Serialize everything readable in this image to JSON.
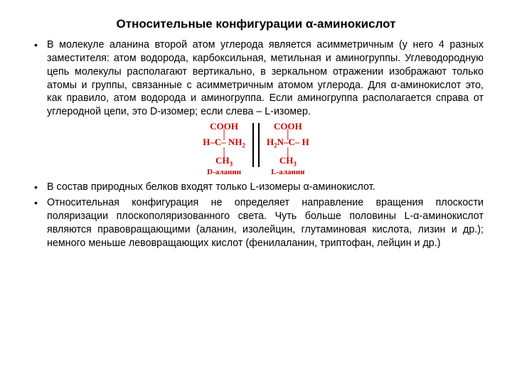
{
  "title": "Относительные конфигурации α-аминокислот",
  "bullets": {
    "b1": "В молекуле аланина второй атом углерода является асимметричным (у него 4 разных заместителя: атом водорода, карбоксильная, метильная и аминогруппы. Углеводородную цепь молекулы располагают вертикально, в зеркальном отражении изображают только атомы и группы, связанные с асимметричным атомом углерода. Для α-аминокислот это, как правило, атом водорода и аминогруппа. Если аминогруппа располагается справа от углеродной цепи, это D-изомер; если слева – L-изомер.",
    "b2": "В состав природных белков входят только L-изомеры α-аминокислот.",
    "b3": "Относительная конфигурация не определяет направление вращения плоскости поляризации плоскополяризованного света. Чуть больше половины L-α-аминокислот являются правовращающими (аланин, изолейцин, глутаминовая кислота, лизин и др.); немного меньше левовращающих кислот (фенилаланин, триптофан, лейцин и др.)"
  },
  "diagram": {
    "left": {
      "top": "COOH",
      "mid_html": "H–C– NH<sub>2</sub>",
      "ch3_html": "CH<sub>3</sub>",
      "label": "D-аланин"
    },
    "right": {
      "top": "COOH",
      "mid_html": "H<sub>2</sub>N–C– H",
      "ch3_html": "CH<sub>3</sub>",
      "label": "L-аланин"
    },
    "colors": {
      "formula": "#cc0000",
      "mirror": "#000000"
    }
  },
  "style": {
    "body_font": "Arial",
    "title_fontsize": 17,
    "text_fontsize": 14.3,
    "formula_font": "Times New Roman",
    "background": "#ffffff",
    "text_color": "#000000"
  }
}
